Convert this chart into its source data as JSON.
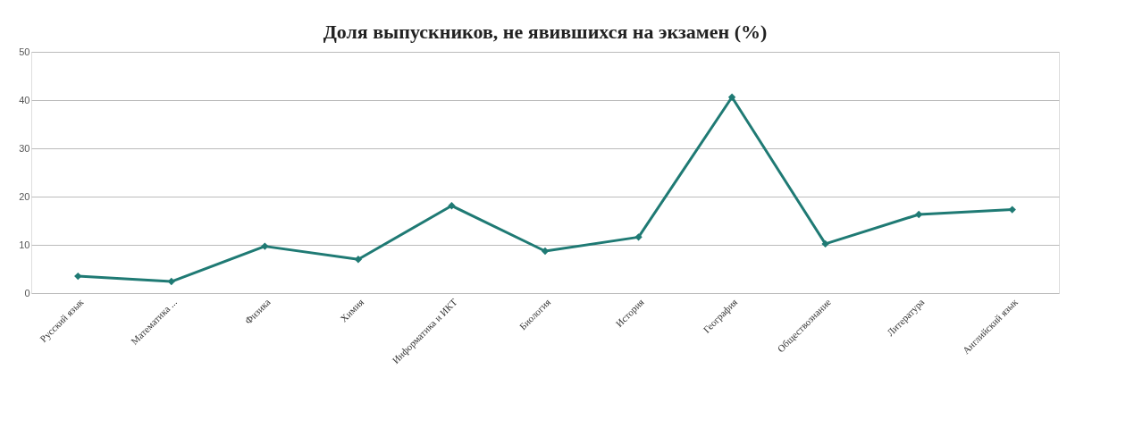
{
  "chart_data": {
    "type": "line",
    "title": "Доля выпускников, не явившихся  на экзамен (%)",
    "categories": [
      "Русский язык",
      "Математика ...",
      "Физика",
      "Химия",
      "Информатика и ИКТ",
      "Биология",
      "История",
      "География",
      "Обществознание",
      "Литература",
      "Английский язык"
    ],
    "series": [
      {
        "color": "#1f7a74",
        "values": [
          3.5,
          2.4,
          9.7,
          7.0,
          18.1,
          8.7,
          11.6,
          40.6,
          10.2,
          16.3,
          17.3
        ]
      }
    ],
    "ylim": [
      0,
      50
    ],
    "yticks": [
      0,
      10,
      20,
      30,
      40,
      50
    ],
    "grid": "y",
    "marker": "diamond",
    "line_style": "solid",
    "legend": false
  }
}
